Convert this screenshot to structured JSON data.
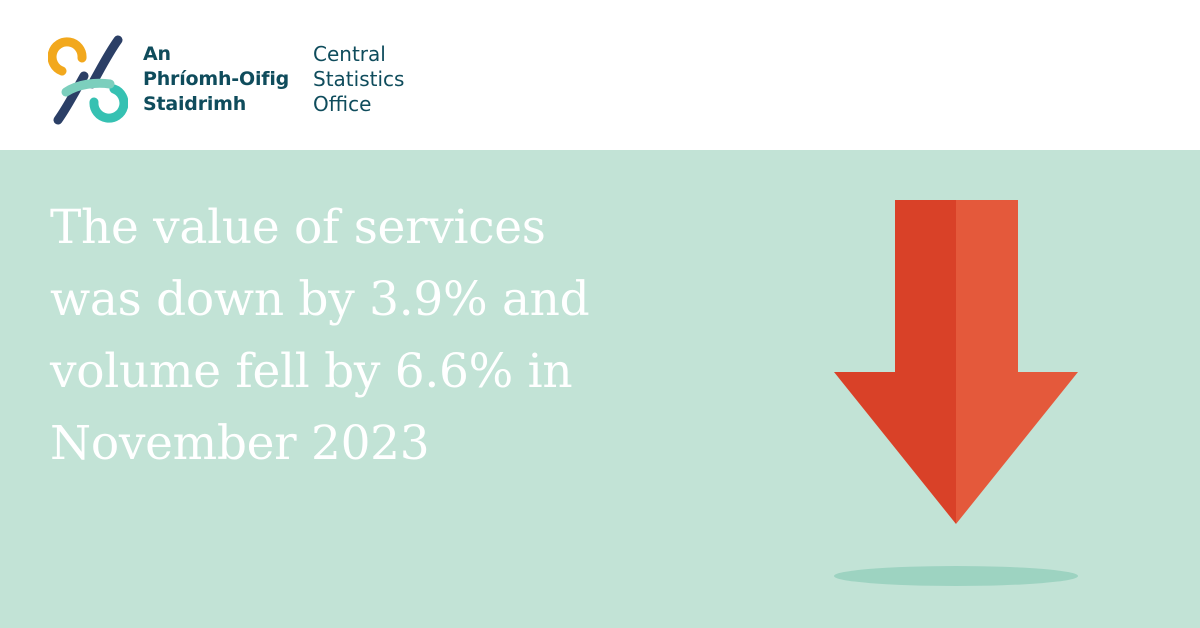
{
  "logo": {
    "irish_lines": [
      "An",
      "Phríomh-Oifig",
      "Staidrimh"
    ],
    "english_lines": [
      "Central",
      "Statistics",
      "Office"
    ],
    "icon": "cso-logo-mark-icon"
  },
  "headline": {
    "lines": [
      "The value of services",
      "was down by 3.9% and",
      "volume fell by 6.6% in",
      "November 2023"
    ]
  },
  "indicator": {
    "icon": "down-arrow-icon",
    "direction": "down"
  },
  "colors": {
    "panel_background": "#c2e3d6",
    "brand_teal_dark": "#0f4c5c",
    "brand_orange": "#f2a81d",
    "brand_navy": "#2b3f66",
    "brand_teal": "#36c1b2",
    "arrow_dark": "#d94128",
    "arrow_light": "#e4593b",
    "shadow": "#9dd3c1"
  }
}
